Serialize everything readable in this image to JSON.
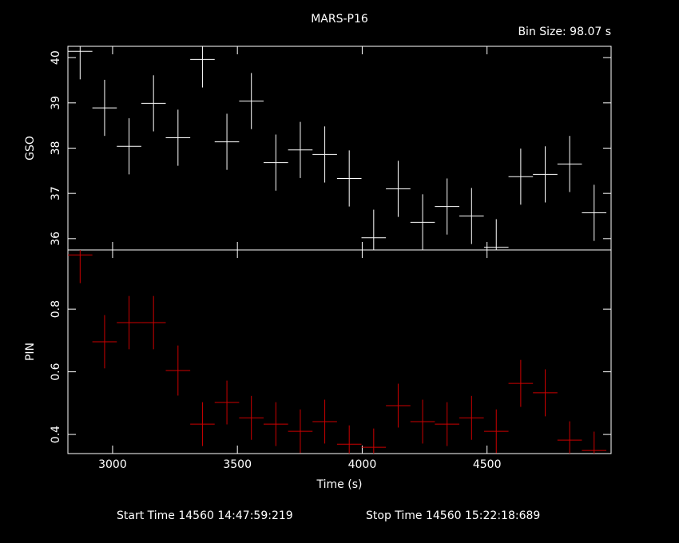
{
  "chart_data": [
    {
      "type": "errorbar",
      "title": "MARS-P16",
      "subtitle": "Bin Size: 98.07 s",
      "ylabel": "GSO",
      "xlim": [
        2821,
        4997
      ],
      "xticks": [
        3000,
        3500,
        4000,
        4500
      ],
      "ylim": [
        35.75,
        40.25
      ],
      "yticks": [
        36,
        37,
        38,
        39,
        40
      ],
      "x": [
        2870,
        2968,
        3066,
        3164,
        3262,
        3360,
        3458,
        3556,
        3654,
        3752,
        3850,
        3948,
        4046,
        4144,
        4242,
        4340,
        4438,
        4537,
        4635,
        4733,
        4831,
        4929
      ],
      "xerr": [
        49,
        49,
        49,
        49,
        49,
        49,
        49,
        49,
        49,
        49,
        49,
        49,
        49,
        49,
        49,
        49,
        49,
        49,
        49,
        49,
        49,
        49
      ],
      "series": [
        {
          "color": "#ffffff",
          "values": [
            40.14,
            38.89,
            38.04,
            38.99,
            38.23,
            39.96,
            38.14,
            39.04,
            37.68,
            37.96,
            37.86,
            37.33,
            36.02,
            37.1,
            36.36,
            36.71,
            36.5,
            35.81,
            37.37,
            37.42,
            37.65,
            36.57
          ],
          "yerr": [
            0.62,
            0.62,
            0.62,
            0.62,
            0.62,
            0.62,
            0.62,
            0.62,
            0.62,
            0.62,
            0.62,
            0.62,
            0.62,
            0.62,
            0.62,
            0.62,
            0.62,
            0.62,
            0.62,
            0.62,
            0.62,
            0.62
          ]
        }
      ]
    },
    {
      "type": "errorbar",
      "ylabel": "PIN",
      "xlabel": "Time (s)",
      "annotations": [
        "Start Time 14560 14:47:59:219",
        "Stop Time 14560 15:22:18:689"
      ],
      "xlim": [
        2821,
        4997
      ],
      "xticks": [
        3000,
        3500,
        4000,
        4500
      ],
      "ylim": [
        0.339,
        0.989
      ],
      "yticks": [
        0.4,
        0.6,
        0.8
      ],
      "x": [
        2870,
        2968,
        3066,
        3164,
        3262,
        3360,
        3458,
        3556,
        3654,
        3752,
        3850,
        3948,
        4046,
        4144,
        4242,
        4340,
        4438,
        4537,
        4635,
        4733,
        4831,
        4929
      ],
      "xerr": [
        49,
        49,
        49,
        49,
        49,
        49,
        49,
        49,
        49,
        49,
        49,
        49,
        49,
        49,
        49,
        49,
        49,
        49,
        49,
        49,
        49,
        49
      ],
      "series": [
        {
          "color": "#cc0000",
          "values": [
            0.973,
            0.696,
            0.757,
            0.757,
            0.604,
            0.433,
            0.502,
            0.453,
            0.433,
            0.41,
            0.441,
            0.369,
            0.359,
            0.492,
            0.441,
            0.433,
            0.453,
            0.41,
            0.563,
            0.533,
            0.382,
            0.349
          ],
          "yerr": [
            0.09,
            0.085,
            0.085,
            0.085,
            0.08,
            0.07,
            0.07,
            0.07,
            0.07,
            0.07,
            0.07,
            0.06,
            0.06,
            0.07,
            0.07,
            0.07,
            0.07,
            0.07,
            0.075,
            0.075,
            0.06,
            0.06
          ]
        }
      ]
    }
  ]
}
